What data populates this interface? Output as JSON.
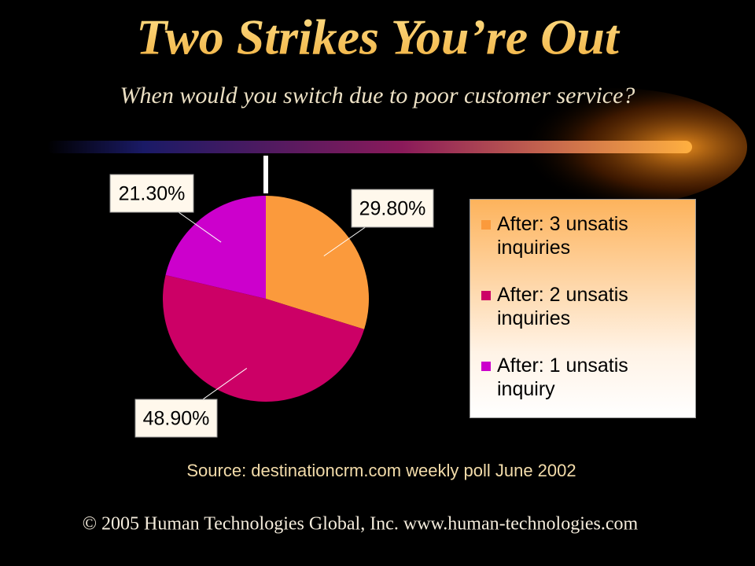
{
  "chart_data": {
    "type": "pie",
    "title": "Two Strikes You’re Out",
    "subtitle": "When would you switch due to poor customer service?",
    "categories": [
      "After: 3 unsatis inquiries",
      "After: 2 unsatis inquiries",
      "After: 1 unsatis inquiry"
    ],
    "values": [
      29.8,
      48.9,
      21.3
    ],
    "value_labels": [
      "29.80%",
      "48.90%",
      "21.30%"
    ],
    "colors": [
      "#fb9a3c",
      "#cc0066",
      "#cc00cc"
    ],
    "source": "Source:  destinationcrm.com weekly poll June 2002"
  },
  "footer": "© 2005 Human Technologies Global, Inc. www.human-technologies.com"
}
